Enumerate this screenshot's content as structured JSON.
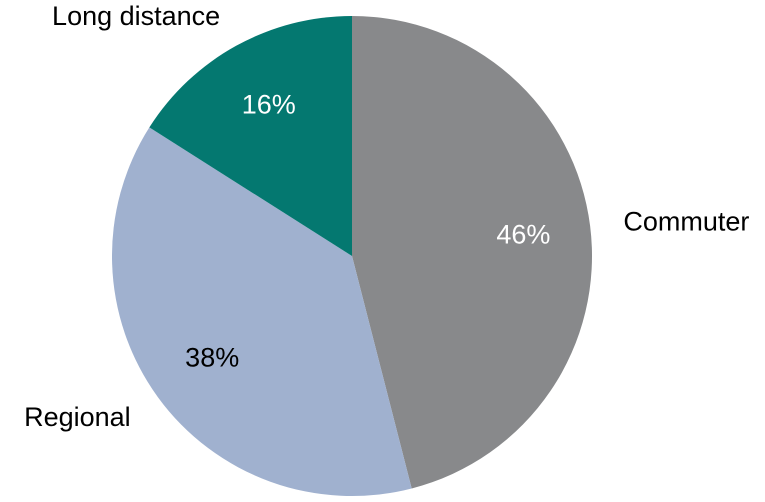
{
  "chart_data": {
    "type": "pie",
    "title": "",
    "slices": [
      {
        "label": "Commuter",
        "value": 46,
        "value_label": "46%",
        "color": "#88898b",
        "value_label_color": "#ffffff"
      },
      {
        "label": "Regional",
        "value": 38,
        "value_label": "38%",
        "color": "#a0b1cf",
        "value_label_color": "#000000"
      },
      {
        "label": "Long distance",
        "value": 16,
        "value_label": "16%",
        "color": "#047870",
        "value_label_color": "#ffffff"
      }
    ],
    "start_angle": "12 o'clock",
    "direction": "clockwise",
    "legend": "none",
    "category_label_color": "#000000"
  }
}
